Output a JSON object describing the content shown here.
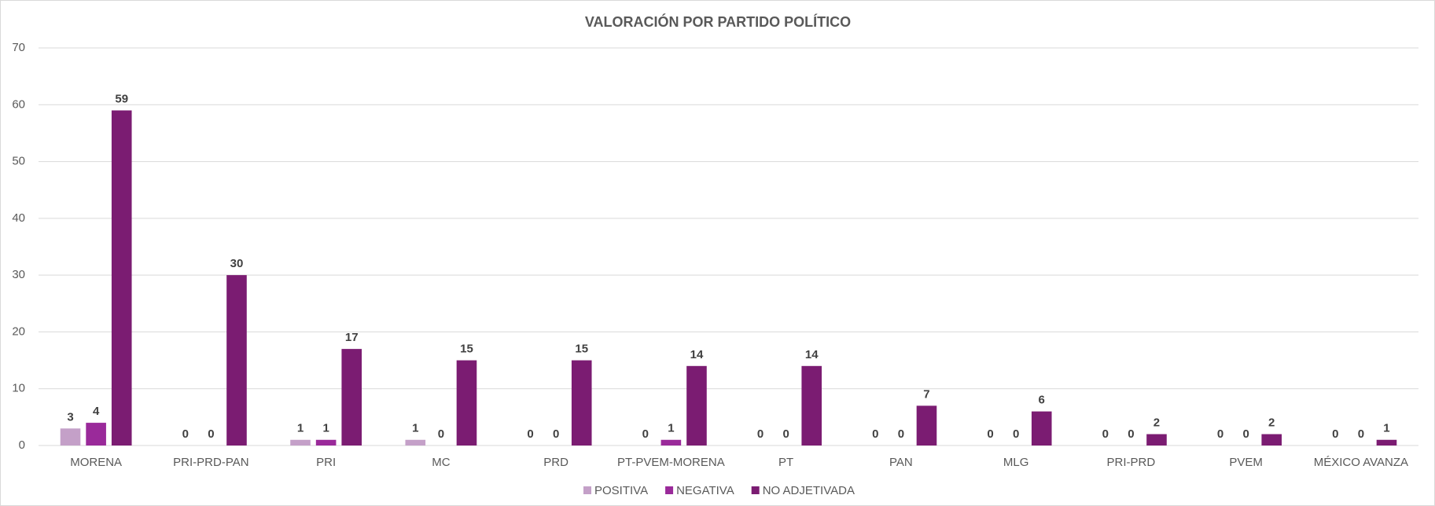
{
  "chart_data": {
    "type": "bar",
    "title": "VALORACIÓN POR PARTIDO POLÍTICO",
    "categories": [
      "MORENA",
      "PRI-PRD-PAN",
      "PRI",
      "MC",
      "PRD",
      "PT-PVEM-MORENA",
      "PT",
      "PAN",
      "MLG",
      "PRI-PRD",
      "PVEM",
      "MÉXICO AVANZA"
    ],
    "series": [
      {
        "name": "POSITIVA",
        "color": "#c4a0c8",
        "values": [
          3,
          0,
          1,
          1,
          0,
          0,
          0,
          0,
          0,
          0,
          0,
          0
        ]
      },
      {
        "name": "NEGATIVA",
        "color": "#9a2a9a",
        "values": [
          4,
          0,
          1,
          0,
          0,
          1,
          0,
          0,
          0,
          0,
          0,
          0
        ]
      },
      {
        "name": "NO ADJETIVADA",
        "color": "#7b1c72",
        "values": [
          59,
          30,
          17,
          15,
          15,
          14,
          14,
          7,
          6,
          2,
          2,
          1
        ]
      }
    ],
    "ylim": [
      0,
      70
    ],
    "yticks": [
      0,
      10,
      20,
      30,
      40,
      50,
      60,
      70
    ],
    "grid": true,
    "legend": "bottom"
  }
}
